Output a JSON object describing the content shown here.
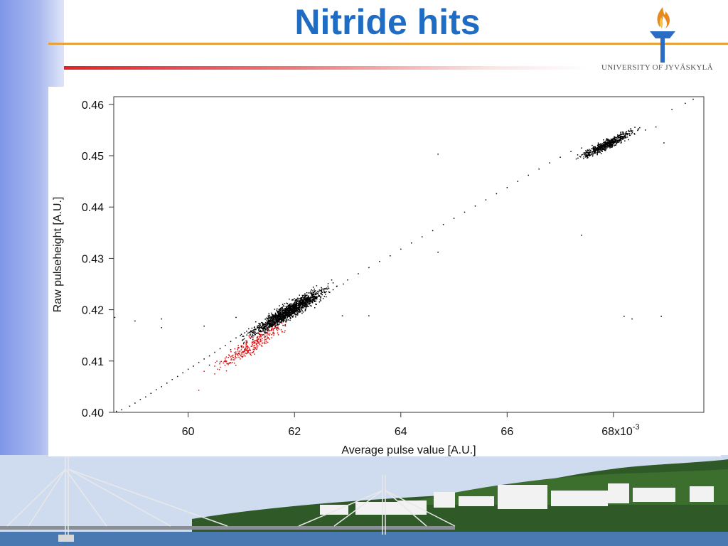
{
  "slide": {
    "title": "Nitride hits",
    "university": "UNIVERSITY OF JYVÄSKYLÄ"
  },
  "colors": {
    "title": "#1f6cc4",
    "orange_rule": "#e6a23c",
    "red_rule": "#e0232a",
    "series_all": "#000000",
    "series_selected": "#e01010"
  },
  "chart_data": {
    "type": "scatter",
    "title": "",
    "xlabel": "Average pulse value [A.U.]",
    "ylabel": "Raw pulseheight [A.U.]",
    "xlim": [
      58.6,
      69.7
    ],
    "ylim": [
      0.4,
      0.4615
    ],
    "x_ticks": [
      {
        "v": 60,
        "label": "60"
      },
      {
        "v": 62,
        "label": "62"
      },
      {
        "v": 64,
        "label": "64"
      },
      {
        "v": 66,
        "label": "66"
      },
      {
        "v": 68,
        "label": "68x10"
      }
    ],
    "x_tick_exponent": "-3",
    "y_ticks": [
      {
        "v": 0.4,
        "label": "0.40"
      },
      {
        "v": 0.41,
        "label": "0.41"
      },
      {
        "v": 0.42,
        "label": "0.42"
      },
      {
        "v": 0.43,
        "label": "0.43"
      },
      {
        "v": 0.44,
        "label": "0.44"
      },
      {
        "v": 0.45,
        "label": "0.45"
      },
      {
        "v": 0.46,
        "label": "0.46"
      }
    ],
    "grid": false,
    "series": [
      {
        "color": "#000000",
        "points": [
          [
            58.65,
            0.4002
          ],
          [
            58.75,
            0.4005
          ],
          [
            58.9,
            0.4012
          ],
          [
            59.0,
            0.4018
          ],
          [
            59.1,
            0.4025
          ],
          [
            59.2,
            0.403
          ],
          [
            59.3,
            0.4037
          ],
          [
            59.4,
            0.4044
          ],
          [
            59.5,
            0.405
          ],
          [
            59.6,
            0.4057
          ],
          [
            59.7,
            0.4064
          ],
          [
            59.8,
            0.407
          ],
          [
            59.9,
            0.4077
          ],
          [
            60.0,
            0.4084
          ],
          [
            60.1,
            0.409
          ],
          [
            60.2,
            0.4097
          ],
          [
            60.3,
            0.4104
          ],
          [
            60.4,
            0.411
          ],
          [
            60.5,
            0.4117
          ],
          [
            60.6,
            0.4124
          ],
          [
            60.7,
            0.413
          ],
          [
            60.8,
            0.4138
          ],
          [
            60.9,
            0.4145
          ],
          [
            61.0,
            0.4152
          ],
          [
            61.1,
            0.4158
          ],
          [
            61.2,
            0.4164
          ],
          [
            61.3,
            0.4168
          ],
          [
            61.4,
            0.4172
          ],
          [
            61.5,
            0.4178
          ],
          [
            61.6,
            0.4183
          ],
          [
            61.7,
            0.4188
          ],
          [
            61.8,
            0.4193
          ],
          [
            61.9,
            0.4198
          ],
          [
            62.0,
            0.4203
          ],
          [
            62.1,
            0.4208
          ],
          [
            62.2,
            0.4213
          ],
          [
            62.4,
            0.4222
          ],
          [
            62.6,
            0.4235
          ],
          [
            62.8,
            0.4246
          ],
          [
            63.0,
            0.4258
          ],
          [
            63.2,
            0.427
          ],
          [
            63.4,
            0.4282
          ],
          [
            63.6,
            0.4294
          ],
          [
            63.8,
            0.4305
          ],
          [
            64.0,
            0.4318
          ],
          [
            64.2,
            0.433
          ],
          [
            64.4,
            0.4342
          ],
          [
            64.6,
            0.4354
          ],
          [
            64.8,
            0.4366
          ],
          [
            65.0,
            0.4378
          ],
          [
            65.2,
            0.439
          ],
          [
            65.4,
            0.4402
          ],
          [
            65.6,
            0.4414
          ],
          [
            65.8,
            0.4426
          ],
          [
            66.0,
            0.4438
          ],
          [
            66.2,
            0.445
          ],
          [
            66.4,
            0.4462
          ],
          [
            66.6,
            0.4474
          ],
          [
            66.8,
            0.4486
          ],
          [
            67.0,
            0.4497
          ],
          [
            67.2,
            0.4508
          ],
          [
            67.4,
            0.4515
          ],
          [
            67.6,
            0.452
          ],
          [
            67.8,
            0.4524
          ],
          [
            68.0,
            0.4528
          ],
          [
            68.2,
            0.4534
          ],
          [
            68.4,
            0.4542
          ],
          [
            68.6,
            0.455
          ],
          [
            68.8,
            0.4556
          ],
          [
            69.1,
            0.459
          ],
          [
            69.35,
            0.4602
          ],
          [
            69.5,
            0.461
          ],
          [
            58.62,
            0.4185
          ],
          [
            59.0,
            0.4178
          ],
          [
            59.5,
            0.4182
          ],
          [
            59.5,
            0.4165
          ],
          [
            60.3,
            0.4168
          ],
          [
            60.9,
            0.4185
          ],
          [
            62.9,
            0.4188
          ],
          [
            63.4,
            0.4188
          ],
          [
            64.7,
            0.4503
          ],
          [
            64.7,
            0.4312
          ],
          [
            67.4,
            0.4345
          ],
          [
            68.2,
            0.4187
          ],
          [
            68.35,
            0.4182
          ],
          [
            68.9,
            0.4187
          ],
          [
            68.95,
            0.4525
          ],
          [
            60.8,
            0.4122
          ],
          [
            61.0,
            0.4128
          ],
          [
            60.4,
            0.4092
          ]
        ]
      },
      {
        "color": "#e01010",
        "points": [
          [
            60.2,
            0.4043
          ],
          [
            60.3,
            0.408
          ],
          [
            60.5,
            0.409
          ],
          [
            60.6,
            0.4098
          ],
          [
            60.7,
            0.4102
          ],
          [
            60.8,
            0.4108
          ],
          [
            60.9,
            0.4115
          ],
          [
            61.0,
            0.4122
          ],
          [
            61.1,
            0.4128
          ],
          [
            61.2,
            0.4135
          ],
          [
            61.3,
            0.4142
          ],
          [
            61.4,
            0.415
          ],
          [
            61.5,
            0.4158
          ],
          [
            61.6,
            0.4163
          ],
          [
            60.5,
            0.4075
          ],
          [
            60.75,
            0.4095
          ],
          [
            61.05,
            0.4112
          ],
          [
            61.35,
            0.4132
          ]
        ]
      }
    ],
    "clusters": [
      {
        "cx": 61.9,
        "cy": 0.4197,
        "sx": 0.32,
        "sy": 0.0016,
        "n": 1500,
        "color": "#000000",
        "slope": 0.0062
      },
      {
        "cx": 61.2,
        "cy": 0.413,
        "sx": 0.28,
        "sy": 0.0018,
        "n": 260,
        "color": "#e01010",
        "slope": 0.0065
      },
      {
        "cx": 67.9,
        "cy": 0.4523,
        "sx": 0.22,
        "sy": 0.001,
        "n": 600,
        "color": "#000000",
        "slope": 0.005
      }
    ]
  }
}
